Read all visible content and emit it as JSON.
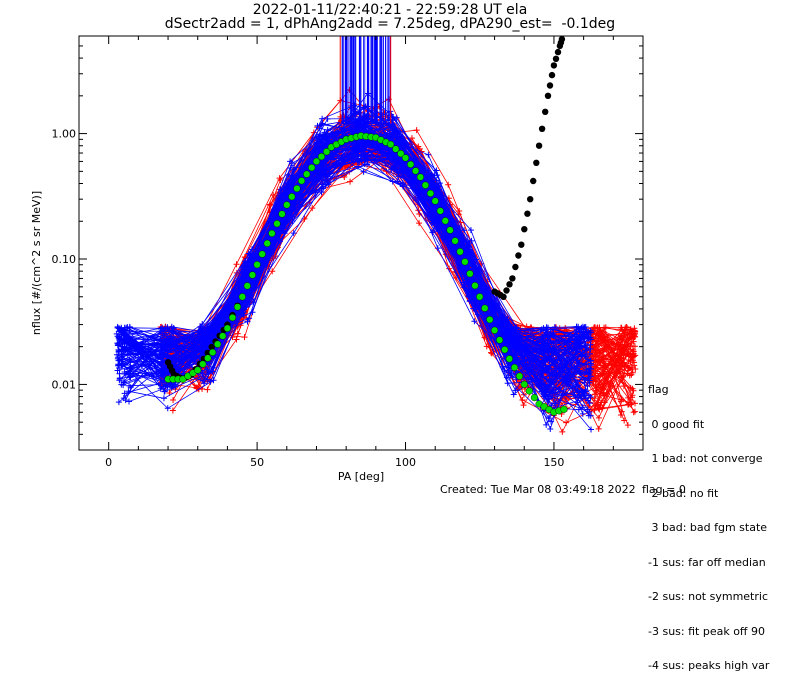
{
  "header": {
    "title_line1": "2022-01-11/22:40:21 - 22:59:28 UT ela",
    "title_line2": "dSectr2add = 1, dPhAng2add = 7.25deg, dPA290_est=  -0.1deg"
  },
  "footer": {
    "created": "Created: Tue Mar 08 03:49:18 2022",
    "flag": "flag = 0"
  },
  "legend": {
    "title": "flag",
    "items": [
      " 0 good fit",
      " 1 bad: not converge",
      " 2 bad: no fit",
      " 3 bad: bad fgm state",
      "-1 sus: far off median",
      "-2 sus: not symmetric",
      "-3 sus: fit peak off 90",
      "-4 sus: peaks high var"
    ]
  },
  "colors": {
    "blue_series": "#0000ff",
    "red_series": "#ff0000",
    "fit_curve": "#00e000",
    "fit_outline": "#000000"
  },
  "chart_data": {
    "type": "line",
    "xlabel": "PA [deg]",
    "ylabel": "nflux [#/(cm^2 s sr MeV)]",
    "xlim": [
      -10,
      180
    ],
    "ylim": [
      0.003,
      6.0
    ],
    "yscale": "log",
    "x_ticks": [
      0,
      50,
      100,
      150
    ],
    "x_tick_labels": [
      "0",
      "50",
      "100",
      "150"
    ],
    "y_ticks": [
      0.01,
      0.1,
      1.0
    ],
    "y_tick_labels": [
      "0.01",
      "0.10",
      "1.00"
    ],
    "fit_curve": {
      "description_color": "green",
      "x": [
        20,
        25,
        30,
        35,
        40,
        45,
        50,
        55,
        60,
        65,
        70,
        75,
        80,
        85,
        90,
        95,
        100,
        105,
        110,
        115,
        120,
        125,
        130,
        135,
        140,
        145,
        150,
        155
      ],
      "y": [
        0.011,
        0.011,
        0.013,
        0.018,
        0.028,
        0.05,
        0.09,
        0.16,
        0.27,
        0.42,
        0.6,
        0.78,
        0.9,
        0.96,
        0.93,
        0.82,
        0.64,
        0.45,
        0.29,
        0.17,
        0.095,
        0.05,
        0.027,
        0.016,
        0.01,
        0.007,
        0.006,
        0.0065
      ]
    },
    "model_curve": {
      "description_color": "black",
      "x": [
        20,
        22,
        25,
        28,
        32,
        36,
        40,
        45,
        130,
        133,
        136,
        139,
        142,
        145,
        148,
        150,
        152,
        153
      ],
      "y": [
        0.015,
        0.012,
        0.011,
        0.012,
        0.016,
        0.022,
        0.03,
        0.05,
        0.055,
        0.05,
        0.07,
        0.13,
        0.3,
        0.8,
        2.0,
        3.5,
        5.0,
        6.0
      ]
    },
    "series": [
      {
        "name": "blue",
        "count": 120
      },
      {
        "name": "red",
        "count": 110
      }
    ],
    "grid": false
  }
}
